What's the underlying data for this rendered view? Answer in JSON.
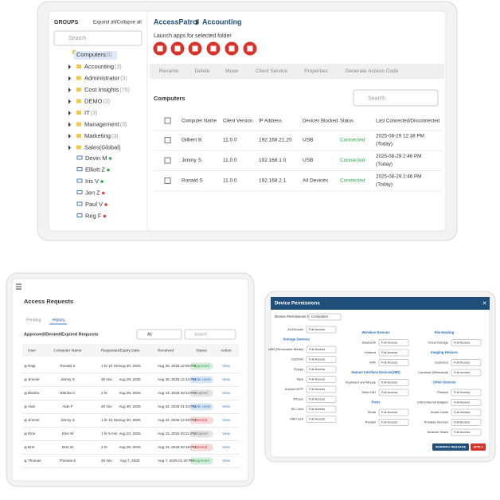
{
  "main_panel": {
    "sidebar": {
      "title": "GROUPS",
      "expand": "Expand all/Collapse all",
      "search": "Search",
      "root": {
        "label": "Computers",
        "count": "(6)"
      },
      "groups": [
        {
          "label": "Accounting",
          "count": "(3)"
        },
        {
          "label": "Administrator",
          "count": "(3)"
        },
        {
          "label": "Cost Insights",
          "count": "(75)"
        },
        {
          "label": "DEMO",
          "count": "(3)"
        },
        {
          "label": "IT",
          "count": "(3)"
        },
        {
          "label": "Management",
          "count": "(3)"
        },
        {
          "label": "Marketing",
          "count": "(3)"
        },
        {
          "label": "Sales(Global)",
          "count": ""
        }
      ],
      "computers": [
        {
          "label": "Devin M",
          "color": "#2eaa4a"
        },
        {
          "label": "Elliott Z",
          "color": "#2eaa4a"
        },
        {
          "label": "Iris V",
          "color": "#2eaa4a"
        },
        {
          "label": "Jen Z",
          "color": "#e04040"
        },
        {
          "label": "Paul V",
          "color": "#e04040"
        },
        {
          "label": "Reg F",
          "color": "#e04040"
        }
      ]
    },
    "breadcrumb": [
      "AccessPatrol",
      "Accounting"
    ],
    "launch_label": "Launch apps for selected folder",
    "toolbar": [
      "Rename",
      "Delete",
      "Move",
      "Client Service",
      "Properties",
      "Generate Access Code"
    ],
    "section_title": "Computers",
    "search": "Search",
    "table": {
      "headers": [
        "Computer Name",
        "Client Version",
        "IP Address",
        "Devices Blocked",
        "Status",
        "Last Connected/Disconnected"
      ],
      "rows": [
        [
          "Gilbert B",
          "11.0.0",
          "192.168.21.20",
          "USB",
          "Connected",
          "2025-08-29 12:38 PM",
          "(Today)"
        ],
        [
          "Jimmy S",
          "11.0.0",
          "192.168.1.0",
          "USB",
          "Connected",
          "2025-08-29 2:46 PM",
          "(Today)"
        ],
        [
          "Ronald S",
          "11.0.0",
          "192.168.2.1",
          "All Devices",
          "Connected",
          "2025-08-29 2:46 PM",
          "(Today)"
        ]
      ]
    }
  },
  "requests_panel": {
    "title": "Access Requests",
    "tabs": [
      "Pending",
      "History"
    ],
    "subtitle": "Approved/Denied/Expired Requests",
    "filter": "All",
    "search": "Search",
    "headers": [
      "User",
      "Computer Name",
      "Requested",
      "Expiry Date",
      "Received",
      "Status",
      "Action"
    ],
    "rows": [
      {
        "cells": [
          "Raja",
          "Ronald S",
          "1 hr 10 min",
          "Aug 30, 2025",
          "Aug 26, 2025 12:50 PM",
          "Approved",
          "View"
        ],
        "color": "#2eaa4a"
      },
      {
        "cells": [
          "Jimmie",
          "Jimmy S",
          "30 min",
          "Aug 29, 2025",
          "Aug 25, 2025 12:42 PM",
          "Code Used",
          "View"
        ],
        "color": "#3b82c4"
      },
      {
        "cells": [
          "Blanka",
          "Blanka C",
          "2 hr",
          "Aug 28, 2025",
          "Aug 24, 2025 03:24 PM",
          "Expired",
          "View"
        ],
        "color": "#777777"
      },
      {
        "cells": [
          "Alan",
          "Alan F",
          "20 min",
          "Aug 30, 2025",
          "Aug 24, 2025 01:34 PM",
          "Code Used",
          "View"
        ],
        "color": "#3b82c4"
      },
      {
        "cells": [
          "Jimmie",
          "Jimmy S",
          "1 hr 10 min",
          "Aug 30, 2025",
          "Aug 24, 2025 12:49 PM",
          "Denied",
          "View"
        ],
        "color": "#d03a3a"
      },
      {
        "cells": [
          "Elon",
          "Elon M",
          "1 hr 5 min",
          "Aug 23, 2025",
          "Aug 23, 2025 03:21 PM",
          "Expired",
          "View"
        ],
        "color": "#777777"
      },
      {
        "cells": [
          "Bret",
          "Bret W",
          "3 hr",
          "Aug 28, 2025",
          "Aug 23, 2025 03:19 PM",
          "Denied",
          "View"
        ],
        "color": "#d03a3a"
      },
      {
        "cells": [
          "Thomas",
          "Thomas E",
          "20 min",
          "Aug 7, 2025",
          "Aug 7, 2025 01:20 PM",
          "Approved",
          "View"
        ],
        "color": "#2eaa4a"
      }
    ]
  },
  "permissions_panel": {
    "title": "Device Permissions",
    "for_label": "Device Permissions for",
    "for_value": "Computers",
    "columns": [
      [
        {
          "label": "All Devices",
          "value": "Full Access"
        },
        {
          "heading": "Storage Devices"
        },
        {
          "label": "USB (Removable Media)",
          "value": "Full Access"
        },
        {
          "label": "CD/DVD",
          "value": "Full Access"
        },
        {
          "label": "Floppy",
          "value": "Full Access"
        },
        {
          "label": "Tape",
          "value": "Full Access"
        },
        {
          "label": "Android MTP",
          "value": "Full Access"
        },
        {
          "label": "iPhone",
          "value": "Full Access"
        },
        {
          "label": "SD Card",
          "value": "Full Access"
        },
        {
          "label": "MM Card",
          "value": "Full Access"
        }
      ],
      [
        {
          "heading": "Wireless Devices"
        },
        {
          "label": "Bluetooth",
          "value": "Full Access"
        },
        {
          "label": "Infrared",
          "value": "Full Access"
        },
        {
          "label": "WiFi",
          "value": "Full Access"
        },
        {
          "heading": "Human Interface Devices(HID)"
        },
        {
          "label": "Keyboard and Mouse",
          "value": "Full Access"
        },
        {
          "label": "Other HID",
          "value": "Full Access"
        },
        {
          "heading": "Ports"
        },
        {
          "label": "Serial",
          "value": "Full Access"
        },
        {
          "label": "Parallel",
          "value": "Full Access"
        }
      ],
      [
        {
          "heading": "File Hosting"
        },
        {
          "label": "Cloud Storage",
          "value": "Full Access"
        },
        {
          "heading": "Imaging Devices"
        },
        {
          "label": "Scanners",
          "value": "Full Access"
        },
        {
          "label": "Cameras (Webcams)",
          "value": "Full Access"
        },
        {
          "heading": "Other Devices"
        },
        {
          "label": "Printers",
          "value": "Full Access"
        },
        {
          "label": "USB Ethernet Adapter",
          "value": "Full Access"
        },
        {
          "label": "Smart Cards",
          "value": "Full Access"
        },
        {
          "label": "Portable Devices",
          "value": "Full Access"
        },
        {
          "label": "Network Share",
          "value": "Full Access"
        }
      ]
    ],
    "buttons": [
      "WARNING MESSAGE",
      "APPLY"
    ]
  }
}
